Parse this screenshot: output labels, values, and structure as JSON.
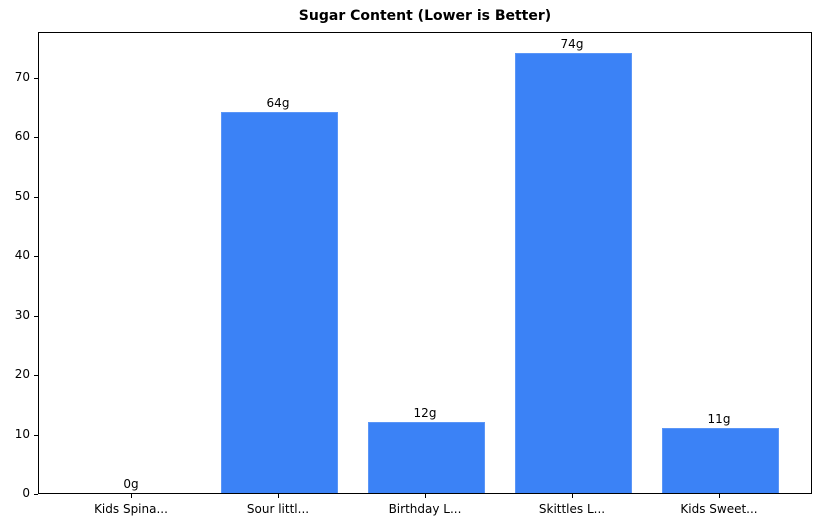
{
  "chart_data": {
    "type": "bar",
    "title": "Sugar Content (Lower is Better)",
    "xlabel": "",
    "ylabel": "",
    "categories": [
      "Kids Spina...",
      "Sour littl...",
      "Birthday L...",
      "Skittles L...",
      "Kids Sweet..."
    ],
    "values": [
      0,
      64,
      12,
      74,
      11
    ],
    "data_labels": [
      "0g",
      "64g",
      "12g",
      "74g",
      "11g"
    ],
    "ylim": [
      0,
      77.7
    ],
    "yticks": [
      0,
      10,
      20,
      30,
      40,
      50,
      60,
      70
    ],
    "grid": false,
    "legend": null,
    "bar_color": "#3b82f6"
  }
}
